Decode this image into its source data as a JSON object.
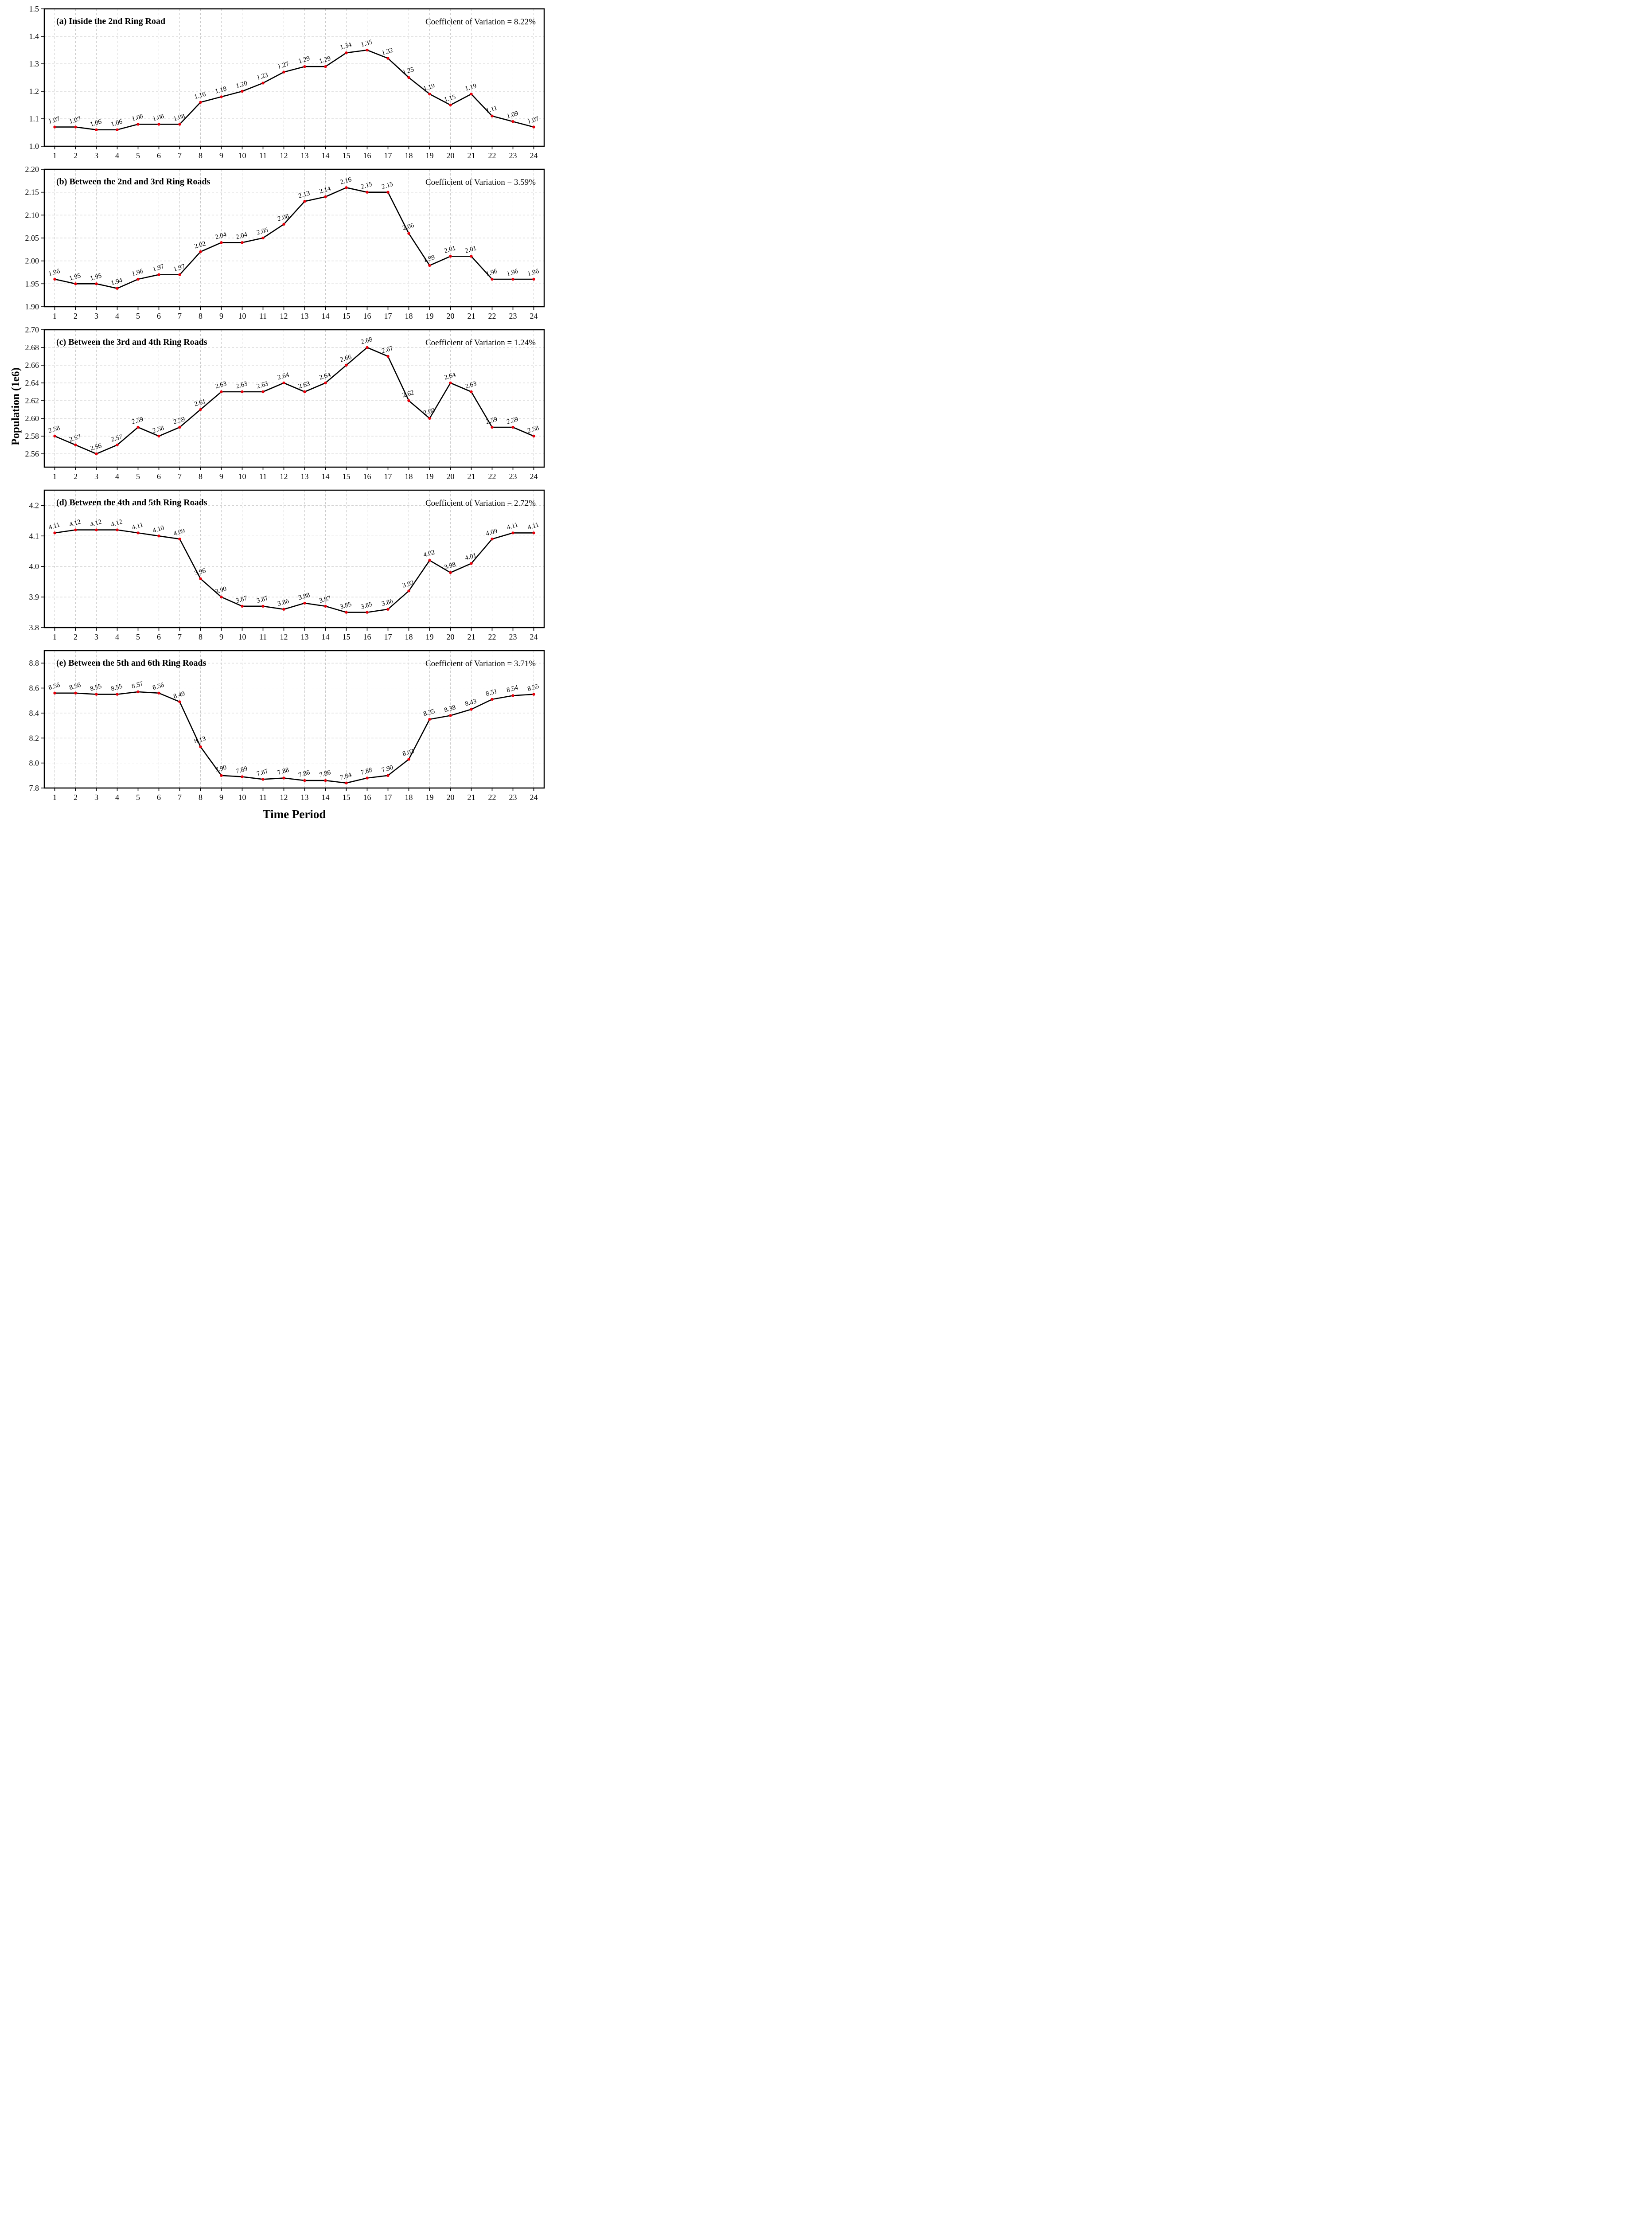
{
  "figure": {
    "ylabel": "Population (1e6)",
    "xlabel": "Time Period"
  },
  "style": {
    "line_color": "#000000",
    "marker_color": "#e8000b",
    "grid_color": "#c9c9c9"
  },
  "chart_data": [
    {
      "type": "line",
      "title": "(a) Inside the 2nd Ring Road",
      "annotation": "Coefficient of Variation = 8.22%",
      "xlabel": "Time Period",
      "ylabel": "Population (1e6)",
      "x": [
        1,
        2,
        3,
        4,
        5,
        6,
        7,
        8,
        9,
        10,
        11,
        12,
        13,
        14,
        15,
        16,
        17,
        18,
        19,
        20,
        21,
        22,
        23,
        24
      ],
      "values": [
        1.07,
        1.07,
        1.06,
        1.06,
        1.08,
        1.08,
        1.08,
        1.16,
        1.18,
        1.2,
        1.23,
        1.27,
        1.29,
        1.29,
        1.34,
        1.35,
        1.32,
        1.25,
        1.19,
        1.15,
        1.19,
        1.11,
        1.09,
        1.07
      ],
      "point_labels": [
        "1.07",
        "1.07",
        "1.06",
        "1.06",
        "1.08",
        "1.08",
        "1.08",
        "1.16",
        "1.18",
        "1.20",
        "1.23",
        "1.27",
        "1.29",
        "1.29",
        "1.34",
        "1.35",
        "1.32",
        "1.25",
        "1.19",
        "1.15",
        "1.19",
        "1.11",
        "1.09",
        "1.07"
      ],
      "ylim": [
        1.0,
        1.5
      ],
      "xlim": [
        0.5,
        24.5
      ],
      "ytick_values": [
        1.5,
        1.4,
        1.3,
        1.2,
        1.1,
        1.0
      ],
      "ytick_labels": [
        "1.5",
        "1.4",
        "1.3",
        "1.2",
        "1.1",
        "1.0"
      ],
      "grid": true,
      "legend_position": "none"
    },
    {
      "type": "line",
      "title": "(b) Between the 2nd and 3rd Ring Roads",
      "annotation": "Coefficient of Variation = 3.59%",
      "x": [
        1,
        2,
        3,
        4,
        5,
        6,
        7,
        8,
        9,
        10,
        11,
        12,
        13,
        14,
        15,
        16,
        17,
        18,
        19,
        20,
        21,
        22,
        23,
        24
      ],
      "values": [
        1.96,
        1.95,
        1.95,
        1.94,
        1.96,
        1.97,
        1.97,
        2.02,
        2.04,
        2.04,
        2.05,
        2.08,
        2.13,
        2.14,
        2.16,
        2.15,
        2.15,
        2.06,
        1.99,
        2.01,
        2.01,
        1.96,
        1.96,
        1.96
      ],
      "point_labels": [
        "1.96",
        "1.95",
        "1.95",
        "1.94",
        "1.96",
        "1.97",
        "1.97",
        "2.02",
        "2.04",
        "2.04",
        "2.05",
        "2.08",
        "2.13",
        "2.14",
        "2.16",
        "2.15",
        "2.15",
        "2.06",
        "1.99",
        "2.01",
        "2.01",
        "1.96",
        "1.96",
        "1.96"
      ],
      "ylim": [
        1.9,
        2.2
      ],
      "xlim": [
        0.5,
        24.5
      ],
      "ytick_values": [
        2.2,
        2.15,
        2.1,
        2.05,
        2.0,
        1.95,
        1.9
      ],
      "ytick_labels": [
        "2.20",
        "2.15",
        "2.10",
        "2.05",
        "2.00",
        "1.95",
        "1.90"
      ],
      "grid": true,
      "legend_position": "none"
    },
    {
      "type": "line",
      "title": "(c) Between the 3rd and 4th Ring Roads",
      "annotation": "Coefficient of Variation = 1.24%",
      "x": [
        1,
        2,
        3,
        4,
        5,
        6,
        7,
        8,
        9,
        10,
        11,
        12,
        13,
        14,
        15,
        16,
        17,
        18,
        19,
        20,
        21,
        22,
        23,
        24
      ],
      "values": [
        2.58,
        2.57,
        2.56,
        2.57,
        2.59,
        2.58,
        2.59,
        2.61,
        2.63,
        2.63,
        2.63,
        2.64,
        2.63,
        2.64,
        2.66,
        2.68,
        2.67,
        2.62,
        2.6,
        2.64,
        2.63,
        2.59,
        2.59,
        2.58
      ],
      "point_labels": [
        "2.58",
        "2.57",
        "2.56",
        "2.57",
        "2.59",
        "2.58",
        "2.59",
        "2.61",
        "2.63",
        "2.63",
        "2.63",
        "2.64",
        "2.63",
        "2.64",
        "2.66",
        "2.68",
        "2.67",
        "2.62",
        "2.60",
        "2.64",
        "2.63",
        "2.59",
        "2.59",
        "2.58"
      ],
      "ylim": [
        2.545,
        2.7
      ],
      "xlim": [
        0.5,
        24.5
      ],
      "ytick_values": [
        2.7,
        2.68,
        2.66,
        2.64,
        2.62,
        2.6,
        2.58,
        2.56
      ],
      "ytick_labels": [
        "2.70",
        "2.68",
        "2.66",
        "2.64",
        "2.62",
        "2.60",
        "2.58",
        "2.56"
      ],
      "grid": true,
      "legend_position": "none"
    },
    {
      "type": "line",
      "title": "(d) Between the 4th and 5th Ring Roads",
      "annotation": "Coefficient of Variation = 2.72%",
      "x": [
        1,
        2,
        3,
        4,
        5,
        6,
        7,
        8,
        9,
        10,
        11,
        12,
        13,
        14,
        15,
        16,
        17,
        18,
        19,
        20,
        21,
        22,
        23,
        24
      ],
      "values": [
        4.11,
        4.12,
        4.12,
        4.12,
        4.11,
        4.1,
        4.09,
        3.96,
        3.9,
        3.87,
        3.87,
        3.86,
        3.88,
        3.87,
        3.85,
        3.85,
        3.86,
        3.92,
        4.02,
        3.98,
        4.01,
        4.09,
        4.11,
        4.11
      ],
      "point_labels": [
        "4.11",
        "4.12",
        "4.12",
        "4.12",
        "4.11",
        "4.10",
        "4.09",
        "3.96",
        "3.90",
        "3.87",
        "3.87",
        "3.86",
        "3.88",
        "3.87",
        "3.85",
        "3.85",
        "3.86",
        "3.92",
        "4.02",
        "3.98",
        "4.01",
        "4.09",
        "4.11",
        "4.11"
      ],
      "ylim": [
        3.8,
        4.25
      ],
      "xlim": [
        0.5,
        24.5
      ],
      "ytick_values": [
        4.2,
        4.1,
        4.0,
        3.9,
        3.8
      ],
      "ytick_labels": [
        "4.2",
        "4.1",
        "4.0",
        "3.9",
        "3.8"
      ],
      "grid": true,
      "legend_position": "none"
    },
    {
      "type": "line",
      "title": "(e) Between the 5th and 6th Ring Roads",
      "annotation": "Coefficient of Variation = 3.71%",
      "x": [
        1,
        2,
        3,
        4,
        5,
        6,
        7,
        8,
        9,
        10,
        11,
        12,
        13,
        14,
        15,
        16,
        17,
        18,
        19,
        20,
        21,
        22,
        23,
        24
      ],
      "values": [
        8.56,
        8.56,
        8.55,
        8.55,
        8.57,
        8.56,
        8.49,
        8.13,
        7.9,
        7.89,
        7.87,
        7.88,
        7.86,
        7.86,
        7.84,
        7.88,
        7.9,
        8.03,
        8.35,
        8.38,
        8.43,
        8.51,
        8.54,
        8.55
      ],
      "point_labels": [
        "8.56",
        "8.56",
        "8.55",
        "8.55",
        "8.57",
        "8.56",
        "8.49",
        "8.13",
        "7.90",
        "7.89",
        "7.87",
        "7.88",
        "7.86",
        "7.86",
        "7.84",
        "7.88",
        "7.90",
        "8.03",
        "8.35",
        "8.38",
        "8.43",
        "8.51",
        "8.54",
        "8.55"
      ],
      "ylim": [
        7.8,
        8.9
      ],
      "xlim": [
        0.5,
        24.5
      ],
      "ytick_values": [
        8.8,
        8.6,
        8.4,
        8.2,
        8.0,
        7.8
      ],
      "ytick_labels": [
        "8.8",
        "8.6",
        "8.4",
        "8.2",
        "8.0",
        "7.8"
      ],
      "grid": true,
      "legend_position": "none"
    }
  ]
}
